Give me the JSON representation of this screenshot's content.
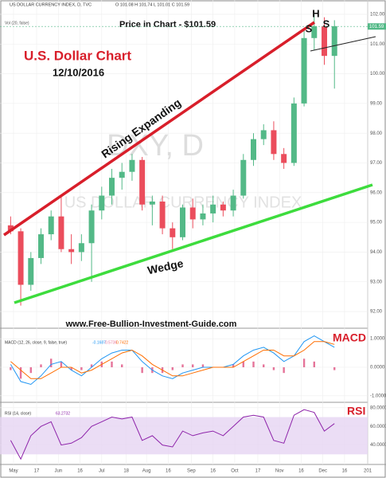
{
  "chart_data": {
    "type": "candlestick",
    "header": "US DOLLAR CURRENCY INDEX, D, TVC",
    "ohlc_readout": "O 101.08 H 101.74 L 101.01 C 101.59",
    "volume_label": "Vol (20, false)",
    "title": "U.S. Dollar Chart",
    "subtitle": "12/10/2016",
    "price_note": "Price in Chart - $101.59",
    "watermark_symbol": "DXY, D",
    "watermark_name": "US DOLLAR CURRENCY INDEX",
    "annotations": {
      "upper": "Rising Expanding",
      "lower": "Wedge",
      "head": "H",
      "left_shoulder": "S",
      "right_shoulder": "S",
      "website": "www.Free-Bullion-Investment-Guide.com"
    },
    "last_price": {
      "value": 101.59,
      "label": "101.59"
    },
    "up_color": "#53b987",
    "down_color": "#eb4d5c",
    "x": [
      -2,
      5,
      12,
      19,
      26,
      33,
      40,
      47,
      54,
      61,
      68,
      75,
      82,
      89,
      96,
      103,
      110,
      117,
      124,
      131,
      138,
      145,
      152,
      159,
      166,
      173,
      180,
      187,
      194,
      201,
      208,
      215,
      222
    ],
    "open": [
      94.9,
      94.7,
      92.9,
      93.8,
      94.6,
      95.2,
      94.1,
      94.0,
      94.3,
      95.4,
      95.9,
      96.5,
      96.7,
      97.1,
      95.6,
      95.7,
      94.8,
      94.5,
      95.5,
      95.1,
      95.3,
      95.6,
      95.4,
      95.9,
      97.1,
      97.8,
      98.1,
      97.3,
      97.0,
      99.0,
      101.2,
      101.6,
      100.6
    ],
    "high": [
      95.2,
      94.8,
      94.0,
      94.8,
      95.4,
      95.9,
      94.6,
      94.6,
      95.6,
      96.2,
      96.8,
      97.0,
      97.3,
      97.2,
      95.9,
      95.9,
      95.0,
      95.6,
      95.8,
      95.6,
      95.9,
      95.7,
      96.1,
      97.3,
      98.0,
      98.3,
      98.4,
      97.5,
      99.2,
      101.5,
      102.0,
      101.9,
      101.8
    ],
    "low": [
      94.6,
      92.2,
      92.7,
      93.6,
      94.4,
      94.0,
      93.6,
      93.7,
      93.0,
      95.1,
      95.6,
      96.1,
      96.4,
      95.4,
      94.9,
      94.6,
      94.1,
      94.4,
      94.8,
      94.9,
      95.0,
      95.2,
      95.2,
      95.8,
      96.9,
      97.6,
      97.1,
      96.8,
      96.9,
      98.9,
      100.8,
      100.3,
      99.5
    ],
    "close": [
      94.7,
      92.9,
      93.8,
      94.6,
      95.2,
      94.1,
      94.0,
      94.3,
      95.4,
      95.9,
      96.5,
      96.7,
      97.1,
      95.6,
      95.7,
      94.8,
      94.5,
      95.5,
      95.1,
      95.3,
      95.6,
      95.4,
      95.9,
      97.1,
      97.8,
      98.1,
      97.3,
      97.0,
      99.0,
      101.2,
      101.6,
      100.6,
      101.6
    ],
    "xlim": [
      -6.6,
      245
    ],
    "xticks": [
      {
        "value": 0,
        "label": "May"
      },
      {
        "value": 16,
        "label": "17"
      },
      {
        "value": 31,
        "label": "Jun"
      },
      {
        "value": 46,
        "label": "16"
      },
      {
        "value": 61,
        "label": "Jul"
      },
      {
        "value": 78,
        "label": "18"
      },
      {
        "value": 92,
        "label": "Aug"
      },
      {
        "value": 107,
        "label": "16"
      },
      {
        "value": 123,
        "label": "Sep"
      },
      {
        "value": 138,
        "label": "16"
      },
      {
        "value": 153,
        "label": "Oct"
      },
      {
        "value": 169,
        "label": "17"
      },
      {
        "value": 184,
        "label": "Nov"
      },
      {
        "value": 199,
        "label": "16"
      },
      {
        "value": 214,
        "label": "Dec"
      },
      {
        "value": 229,
        "label": "16"
      },
      {
        "value": 245,
        "label": "201"
      }
    ],
    "ylim": [
      91.6,
      102.4
    ],
    "yticks": [
      {
        "value": 92,
        "label": "92.00"
      },
      {
        "value": 93,
        "label": "93.00"
      },
      {
        "value": 94,
        "label": "94.00"
      },
      {
        "value": 95,
        "label": "95.00"
      },
      {
        "value": 96,
        "label": "96.00"
      },
      {
        "value": 97,
        "label": "97.00"
      },
      {
        "value": 98,
        "label": "98.00"
      },
      {
        "value": 99,
        "label": "99.00"
      },
      {
        "value": 100,
        "label": "100.00"
      },
      {
        "value": 101,
        "label": "101.00"
      },
      {
        "value": 102,
        "label": "102.00"
      }
    ],
    "grid": true,
    "macd": {
      "label": "MACD (12, 26, close, 9, false, true)",
      "readout": [
        "-0.1687",
        "0.5736",
        "0.7422"
      ],
      "title": "MACD",
      "ylim": [
        -1.2,
        1.2
      ],
      "yticks": [
        {
          "value": 1,
          "label": "1.0000"
        },
        {
          "value": 0,
          "label": "0.0000"
        },
        {
          "value": -1,
          "label": "-1.0000"
        }
      ],
      "series": [
        {
          "name": "MACD",
          "color": "#2196f3",
          "values": [
            0.1,
            -0.5,
            -0.6,
            -0.3,
            0.1,
            0.2,
            -0.1,
            -0.3,
            0.0,
            0.3,
            0.5,
            0.6,
            0.6,
            0.2,
            -0.1,
            -0.3,
            -0.4,
            -0.2,
            -0.1,
            0.0,
            0.0,
            0.0,
            0.1,
            0.4,
            0.6,
            0.7,
            0.5,
            0.2,
            0.4,
            0.9,
            1.1,
            0.9,
            0.7
          ]
        },
        {
          "name": "Signal",
          "color": "#ff6d00",
          "values": [
            0.2,
            -0.1,
            -0.4,
            -0.4,
            -0.2,
            0.0,
            0.0,
            -0.2,
            -0.1,
            0.1,
            0.3,
            0.5,
            0.6,
            0.4,
            0.1,
            -0.1,
            -0.3,
            -0.3,
            -0.2,
            -0.1,
            0.0,
            0.0,
            0.0,
            0.2,
            0.4,
            0.6,
            0.6,
            0.4,
            0.4,
            0.6,
            0.9,
            0.9,
            0.8
          ]
        }
      ],
      "histogram": {
        "color": "#e57399",
        "values": [
          -0.1,
          -0.4,
          -0.2,
          0.1,
          0.3,
          0.2,
          -0.1,
          -0.1,
          0.1,
          0.2,
          0.2,
          0.1,
          0.0,
          -0.2,
          -0.2,
          -0.2,
          -0.1,
          0.1,
          0.1,
          0.1,
          0.0,
          0.0,
          0.1,
          0.2,
          0.2,
          0.1,
          -0.1,
          -0.2,
          0.0,
          0.3,
          0.2,
          0.0,
          -0.1
        ]
      }
    },
    "rsi": {
      "label": "RSI (14, close)",
      "readout": "63.2732",
      "title": "RSI",
      "color": "#8e24aa",
      "band": [
        30,
        70
      ],
      "ylim": [
        20,
        85
      ],
      "yticks": [
        {
          "value": 80,
          "label": "80.0000"
        },
        {
          "value": 60,
          "label": "60.0000"
        },
        {
          "value": 40,
          "label": "40.0000"
        }
      ],
      "values": [
        45,
        25,
        50,
        60,
        65,
        40,
        42,
        48,
        60,
        65,
        70,
        68,
        70,
        45,
        50,
        40,
        38,
        55,
        50,
        53,
        55,
        50,
        60,
        70,
        72,
        70,
        45,
        42,
        72,
        78,
        75,
        55,
        63
      ]
    }
  }
}
